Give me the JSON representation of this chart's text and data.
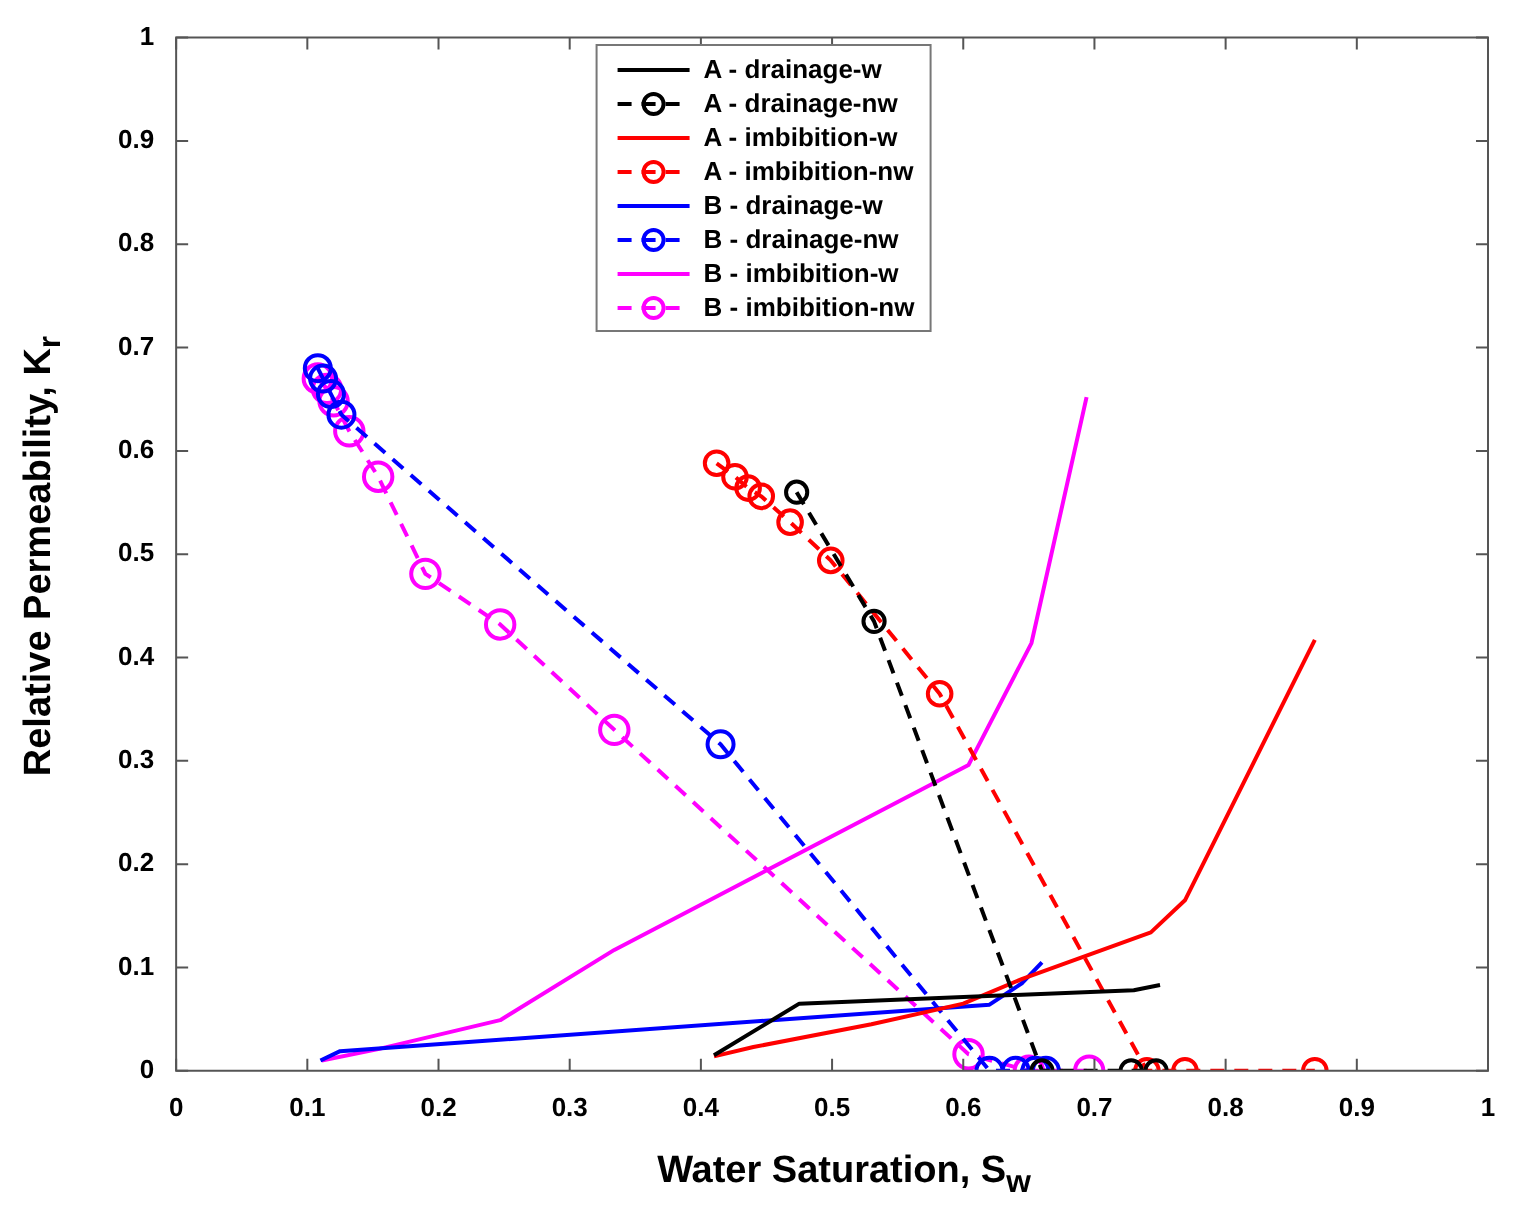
{
  "chart_data": {
    "type": "line",
    "xlabel": "Water Saturation, S$_{w}$",
    "ylabel": "Relative Permeability, K$_{r}$",
    "xlim": [
      0,
      1
    ],
    "ylim": [
      0,
      1
    ],
    "xticks": [
      0,
      0.1,
      0.2,
      0.3,
      0.4,
      0.5,
      0.6,
      0.7,
      0.8,
      0.9,
      1
    ],
    "yticks": [
      0,
      0.1,
      0.2,
      0.3,
      0.4,
      0.5,
      0.6,
      0.7,
      0.8,
      0.9,
      1
    ],
    "legend": "top",
    "series": [
      {
        "name": "A - drainage-w",
        "color": "#000000",
        "marker": "none",
        "line_style": "solid",
        "x": [
          0.41,
          0.475,
          0.73,
          0.75
        ],
        "values": [
          0.015,
          0.065,
          0.078,
          0.083
        ]
      },
      {
        "name": "A - drainage-nw",
        "color": "#000000",
        "marker": "circle",
        "line_style": "dashed",
        "x": [
          0.473,
          0.532,
          0.66,
          0.728,
          0.747
        ],
        "values": [
          0.56,
          0.435,
          0,
          0,
          0
        ]
      },
      {
        "name": "A - imbibition-w",
        "color": "#ff0000",
        "marker": "none",
        "line_style": "solid",
        "x": [
          0.41,
          0.44,
          0.53,
          0.6,
          0.645,
          0.743,
          0.769,
          0.868
        ],
        "values": [
          0.014,
          0.023,
          0.045,
          0.065,
          0.089,
          0.134,
          0.165,
          0.417
        ]
      },
      {
        "name": "A - imbibition-nw",
        "color": "#ff0000",
        "marker": "circle",
        "line_style": "dashed",
        "x": [
          0.412,
          0.426,
          0.436,
          0.446,
          0.468,
          0.499,
          0.582,
          0.74,
          0.769,
          0.868
        ],
        "values": [
          0.588,
          0.575,
          0.564,
          0.556,
          0.531,
          0.494,
          0.365,
          0,
          0,
          0
        ]
      },
      {
        "name": "B - drainage-w",
        "color": "#0000ff",
        "marker": "none",
        "line_style": "solid",
        "x": [
          0.11,
          0.125,
          0.62,
          0.645,
          0.66
        ],
        "values": [
          0.01,
          0.019,
          0.064,
          0.085,
          0.105
        ]
      },
      {
        "name": "B - drainage-nw",
        "color": "#0000ff",
        "marker": "circle",
        "line_style": "dashed",
        "x": [
          0.108,
          0.112,
          0.118,
          0.126,
          0.415,
          0.62,
          0.64,
          0.655,
          0.663
        ],
        "values": [
          0.68,
          0.67,
          0.655,
          0.635,
          0.316,
          0,
          0,
          0,
          0
        ]
      },
      {
        "name": "B - imbibition-w",
        "color": "#ff00ff",
        "marker": "none",
        "line_style": "solid",
        "x": [
          0.111,
          0.154,
          0.247,
          0.334,
          0.604,
          0.652,
          0.694
        ],
        "values": [
          0.01,
          0.021,
          0.049,
          0.117,
          0.296,
          0.414,
          0.652
        ]
      },
      {
        "name": "B - imbibition-nw",
        "color": "#ff00ff",
        "marker": "circle",
        "line_style": "dashed",
        "x": [
          0.108,
          0.115,
          0.12,
          0.132,
          0.154,
          0.19,
          0.247,
          0.334,
          0.604,
          0.65,
          0.696
        ],
        "values": [
          0.67,
          0.66,
          0.648,
          0.619,
          0.575,
          0.481,
          0.432,
          0.33,
          0.016,
          0,
          0
        ]
      }
    ]
  }
}
